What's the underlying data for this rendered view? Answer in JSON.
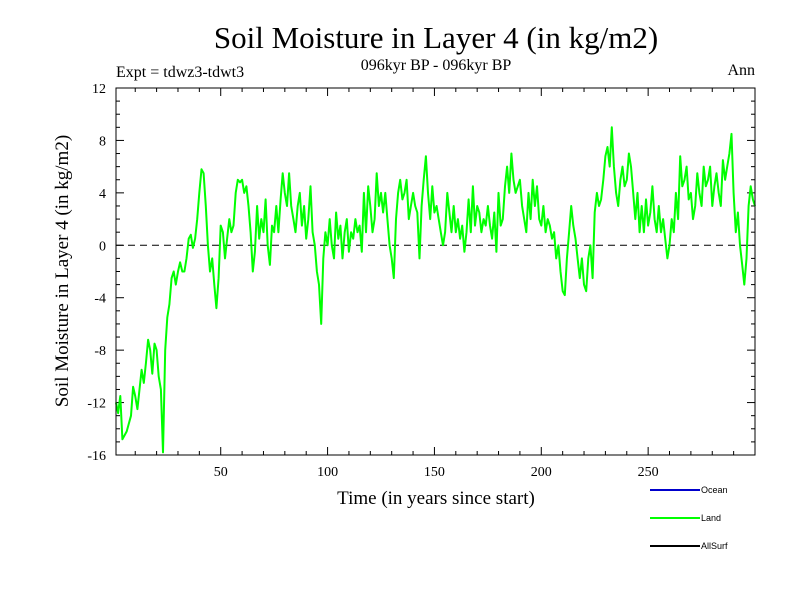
{
  "chart_data": {
    "type": "line",
    "title": "Soil Moisture in Layer 4 (in kg/m2)",
    "subtitle": "096kyr BP - 096kyr BP",
    "experiment_label": "Expt = tdwz3-tdwt3",
    "period_label": "Ann",
    "xlabel": "Time (in years since start)",
    "ylabel": "Soil Moisture in Layer 4 (in kg/m2)",
    "xlim": [
      1,
      300
    ],
    "ylim": [
      -16,
      12
    ],
    "x_ticks": [
      50,
      100,
      150,
      200,
      250
    ],
    "y_ticks": [
      -16,
      -12,
      -8,
      -4,
      0,
      4,
      8,
      12
    ],
    "zero_line": "dashed",
    "legend_placement": "bottom-right",
    "series": [
      {
        "name": "Ocean",
        "color": "#0000cc",
        "points": []
      },
      {
        "name": "Land",
        "color": "#00ff00",
        "points": [
          [
            1,
            -12
          ],
          [
            2,
            -12.8
          ],
          [
            3,
            -11.5
          ],
          [
            4,
            -14.8
          ],
          [
            6,
            -14.2
          ],
          [
            8,
            -13
          ],
          [
            9,
            -10.8
          ],
          [
            10,
            -11.5
          ],
          [
            11,
            -12.5
          ],
          [
            12,
            -11
          ],
          [
            13,
            -9.5
          ],
          [
            14,
            -10.5
          ],
          [
            15,
            -9
          ],
          [
            16,
            -7.2
          ],
          [
            17,
            -8
          ],
          [
            18,
            -9.8
          ],
          [
            19,
            -7.5
          ],
          [
            20,
            -8
          ],
          [
            21,
            -10
          ],
          [
            22,
            -11
          ],
          [
            23,
            -15.8
          ],
          [
            24,
            -8
          ],
          [
            25,
            -5.5
          ],
          [
            26,
            -4.5
          ],
          [
            27,
            -2.5
          ],
          [
            28,
            -2
          ],
          [
            29,
            -3
          ],
          [
            30,
            -2
          ],
          [
            31,
            -1.3
          ],
          [
            32,
            -2
          ],
          [
            33,
            -2
          ],
          [
            34,
            -1
          ],
          [
            35,
            0.5
          ],
          [
            36,
            0.8
          ],
          [
            37,
            -0.2
          ],
          [
            38,
            0.5
          ],
          [
            39,
            2
          ],
          [
            40,
            4
          ],
          [
            41,
            5.8
          ],
          [
            42,
            5.5
          ],
          [
            43,
            3
          ],
          [
            44,
            0
          ],
          [
            45,
            -2
          ],
          [
            46,
            -1
          ],
          [
            47,
            -3
          ],
          [
            48,
            -4.8
          ],
          [
            49,
            -2.5
          ],
          [
            50,
            1.5
          ],
          [
            51,
            1
          ],
          [
            52,
            -1
          ],
          [
            53,
            0.5
          ],
          [
            54,
            2
          ],
          [
            55,
            1
          ],
          [
            56,
            1.5
          ],
          [
            57,
            4
          ],
          [
            58,
            5
          ],
          [
            59,
            4.8
          ],
          [
            60,
            5
          ],
          [
            61,
            4
          ],
          [
            62,
            4.5
          ],
          [
            63,
            3
          ],
          [
            64,
            1
          ],
          [
            65,
            -2
          ],
          [
            66,
            -0.5
          ],
          [
            67,
            3
          ],
          [
            68,
            0.5
          ],
          [
            69,
            2
          ],
          [
            70,
            1
          ],
          [
            71,
            3.5
          ],
          [
            72,
            0
          ],
          [
            73,
            -1.5
          ],
          [
            74,
            1.5
          ],
          [
            75,
            1
          ],
          [
            76,
            3
          ],
          [
            77,
            1
          ],
          [
            78,
            3.5
          ],
          [
            79,
            5.5
          ],
          [
            80,
            4
          ],
          [
            81,
            3
          ],
          [
            82,
            5.5
          ],
          [
            83,
            3
          ],
          [
            84,
            2
          ],
          [
            85,
            1
          ],
          [
            86,
            3
          ],
          [
            87,
            4
          ],
          [
            88,
            1.5
          ],
          [
            89,
            3
          ],
          [
            90,
            0.5
          ],
          [
            91,
            2
          ],
          [
            92,
            4.5
          ],
          [
            93,
            1
          ],
          [
            94,
            0
          ],
          [
            95,
            -2
          ],
          [
            96,
            -3
          ],
          [
            97,
            -6
          ],
          [
            98,
            -1
          ],
          [
            99,
            1
          ],
          [
            100,
            0
          ],
          [
            101,
            2
          ],
          [
            102,
            0
          ],
          [
            103,
            -1
          ],
          [
            104,
            2.5
          ],
          [
            105,
            0.5
          ],
          [
            106,
            1.5
          ],
          [
            107,
            -1
          ],
          [
            108,
            1
          ],
          [
            109,
            2
          ],
          [
            110,
            -0.5
          ],
          [
            111,
            1
          ],
          [
            112,
            0.5
          ],
          [
            113,
            2
          ],
          [
            114,
            1
          ],
          [
            115,
            1.5
          ],
          [
            116,
            -0.5
          ],
          [
            117,
            4
          ],
          [
            118,
            1
          ],
          [
            119,
            4.5
          ],
          [
            120,
            3
          ],
          [
            121,
            1
          ],
          [
            122,
            2
          ],
          [
            123,
            5.5
          ],
          [
            124,
            3
          ],
          [
            125,
            4
          ],
          [
            126,
            2.5
          ],
          [
            127,
            4
          ],
          [
            128,
            2
          ],
          [
            129,
            0
          ],
          [
            130,
            -1
          ],
          [
            131,
            -2.5
          ],
          [
            132,
            2
          ],
          [
            133,
            4
          ],
          [
            134,
            5
          ],
          [
            135,
            3.5
          ],
          [
            136,
            4
          ],
          [
            137,
            5
          ],
          [
            138,
            2
          ],
          [
            139,
            3
          ],
          [
            140,
            4
          ],
          [
            141,
            3
          ],
          [
            142,
            2.5
          ],
          [
            143,
            -1
          ],
          [
            144,
            3
          ],
          [
            145,
            5
          ],
          [
            146,
            6.8
          ],
          [
            147,
            4
          ],
          [
            148,
            2
          ],
          [
            149,
            4.5
          ],
          [
            150,
            2.5
          ],
          [
            151,
            3
          ],
          [
            152,
            2
          ],
          [
            153,
            1
          ],
          [
            154,
            0
          ],
          [
            155,
            1
          ],
          [
            156,
            4
          ],
          [
            157,
            2.5
          ],
          [
            158,
            1
          ],
          [
            159,
            3
          ],
          [
            160,
            1
          ],
          [
            161,
            2
          ],
          [
            162,
            0.5
          ],
          [
            163,
            1.5
          ],
          [
            164,
            -0.5
          ],
          [
            165,
            1
          ],
          [
            166,
            3.5
          ],
          [
            167,
            1
          ],
          [
            168,
            4.5
          ],
          [
            169,
            1.5
          ],
          [
            170,
            3
          ],
          [
            171,
            2.5
          ],
          [
            172,
            1
          ],
          [
            173,
            2
          ],
          [
            174,
            1.5
          ],
          [
            175,
            3
          ],
          [
            176,
            1.5
          ],
          [
            177,
            0.5
          ],
          [
            178,
            2.5
          ],
          [
            179,
            -0.5
          ],
          [
            180,
            4
          ],
          [
            181,
            1.5
          ],
          [
            182,
            2
          ],
          [
            183,
            4.5
          ],
          [
            184,
            6
          ],
          [
            185,
            4
          ],
          [
            186,
            7
          ],
          [
            187,
            5
          ],
          [
            188,
            4
          ],
          [
            189,
            4.5
          ],
          [
            190,
            5
          ],
          [
            191,
            3
          ],
          [
            192,
            2
          ],
          [
            193,
            1
          ],
          [
            194,
            4
          ],
          [
            195,
            2
          ],
          [
            196,
            5
          ],
          [
            197,
            3
          ],
          [
            198,
            4.5
          ],
          [
            199,
            2
          ],
          [
            200,
            1.5
          ],
          [
            201,
            3
          ],
          [
            202,
            1
          ],
          [
            203,
            2
          ],
          [
            204,
            1.5
          ],
          [
            205,
            0.5
          ],
          [
            206,
            1
          ],
          [
            207,
            -1
          ],
          [
            208,
            0
          ],
          [
            209,
            -2
          ],
          [
            210,
            -3.5
          ],
          [
            211,
            -3.8
          ],
          [
            212,
            -1
          ],
          [
            213,
            1
          ],
          [
            214,
            3
          ],
          [
            215,
            1.5
          ],
          [
            216,
            0.5
          ],
          [
            217,
            -1
          ],
          [
            218,
            -2.5
          ],
          [
            219,
            -1
          ],
          [
            220,
            -3
          ],
          [
            221,
            -3.5
          ],
          [
            222,
            -1
          ],
          [
            223,
            0
          ],
          [
            224,
            -2.5
          ],
          [
            225,
            2.5
          ],
          [
            226,
            4
          ],
          [
            227,
            3
          ],
          [
            228,
            3.5
          ],
          [
            229,
            5
          ],
          [
            230,
            6.8
          ],
          [
            231,
            7.5
          ],
          [
            232,
            6
          ],
          [
            233,
            9
          ],
          [
            234,
            6
          ],
          [
            235,
            4
          ],
          [
            236,
            3
          ],
          [
            237,
            5
          ],
          [
            238,
            6
          ],
          [
            239,
            4.5
          ],
          [
            240,
            5
          ],
          [
            241,
            7
          ],
          [
            242,
            6
          ],
          [
            243,
            4
          ],
          [
            244,
            2
          ],
          [
            245,
            4
          ],
          [
            246,
            1
          ],
          [
            247,
            3
          ],
          [
            248,
            1
          ],
          [
            249,
            3.5
          ],
          [
            250,
            1.5
          ],
          [
            251,
            2.5
          ],
          [
            252,
            4.5
          ],
          [
            253,
            2
          ],
          [
            254,
            1
          ],
          [
            255,
            3
          ],
          [
            256,
            1
          ],
          [
            257,
            2
          ],
          [
            258,
            0.5
          ],
          [
            259,
            -1
          ],
          [
            260,
            0
          ],
          [
            261,
            2
          ],
          [
            262,
            1
          ],
          [
            263,
            4
          ],
          [
            264,
            2
          ],
          [
            265,
            6.8
          ],
          [
            266,
            4.5
          ],
          [
            267,
            5
          ],
          [
            268,
            6
          ],
          [
            269,
            3.5
          ],
          [
            270,
            4
          ],
          [
            271,
            2
          ],
          [
            272,
            3
          ],
          [
            273,
            5.5
          ],
          [
            274,
            4
          ],
          [
            275,
            3
          ],
          [
            276,
            6
          ],
          [
            277,
            4.5
          ],
          [
            278,
            5
          ],
          [
            279,
            6
          ],
          [
            280,
            3
          ],
          [
            281,
            4.5
          ],
          [
            282,
            5.5
          ],
          [
            283,
            4
          ],
          [
            284,
            3
          ],
          [
            285,
            6.5
          ],
          [
            286,
            5
          ],
          [
            287,
            6
          ],
          [
            288,
            7
          ],
          [
            289,
            8.5
          ],
          [
            290,
            4
          ],
          [
            291,
            1
          ],
          [
            292,
            2.5
          ],
          [
            293,
            0
          ],
          [
            294,
            -1.5
          ],
          [
            295,
            -3
          ],
          [
            296,
            -1
          ],
          [
            297,
            3
          ],
          [
            298,
            4.5
          ],
          [
            299,
            3.5
          ],
          [
            300,
            3
          ]
        ]
      },
      {
        "name": "AllSurf",
        "color": "#000000",
        "points": []
      }
    ]
  }
}
